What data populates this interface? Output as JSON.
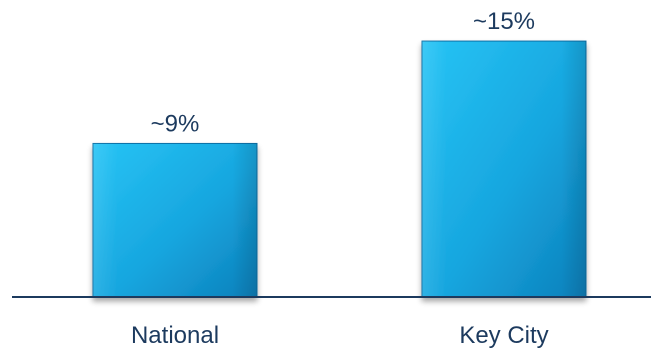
{
  "chart_data": {
    "type": "bar",
    "title": "",
    "xlabel": "",
    "ylabel": "",
    "categories": [
      "National",
      "Key City"
    ],
    "values": [
      9,
      15
    ],
    "value_labels": [
      "~9%",
      "~15%"
    ],
    "ylim": [
      0,
      16
    ],
    "grid": false,
    "legend": "none",
    "colors": {
      "bar_light": "#27c4f5",
      "bar_mid": "#17a6df",
      "bar_dark": "#0c7fba",
      "bar_edge": "#0a6fa5",
      "axis": "#1c3a5e",
      "label_text": "#1c3a5e"
    }
  }
}
